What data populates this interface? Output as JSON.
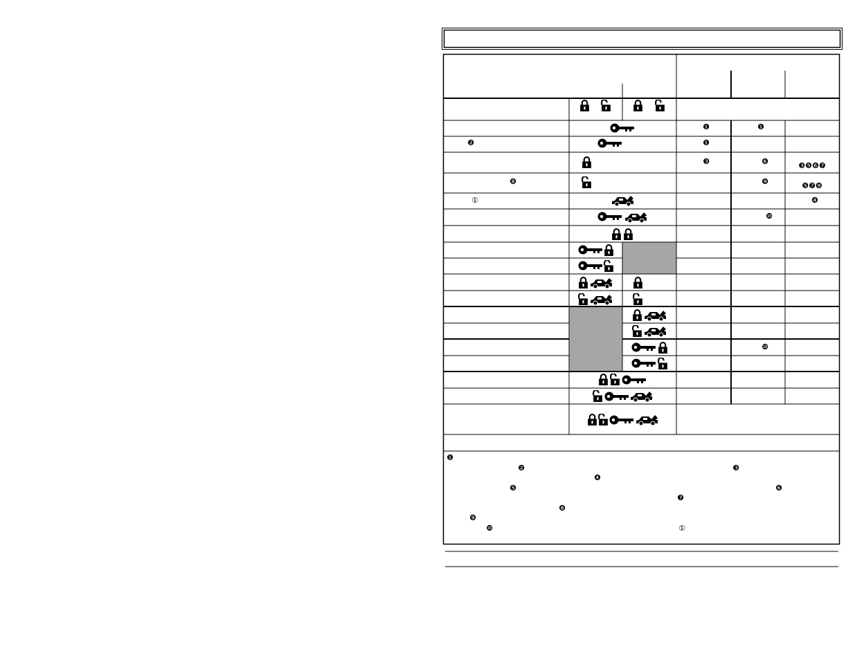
{
  "table": {
    "marks": [
      "❶",
      "❶",
      "❷",
      "❶",
      "❸",
      "❻",
      "❸❺❻❼",
      "❽",
      "❾",
      "❺❼❾",
      "①",
      "❹",
      "❿",
      "❿"
    ]
  },
  "notes": [
    "❶",
    "❷",
    "❸",
    "❹",
    "❺",
    "❻",
    "❼",
    "❽",
    "❾",
    "❿",
    "①"
  ]
}
